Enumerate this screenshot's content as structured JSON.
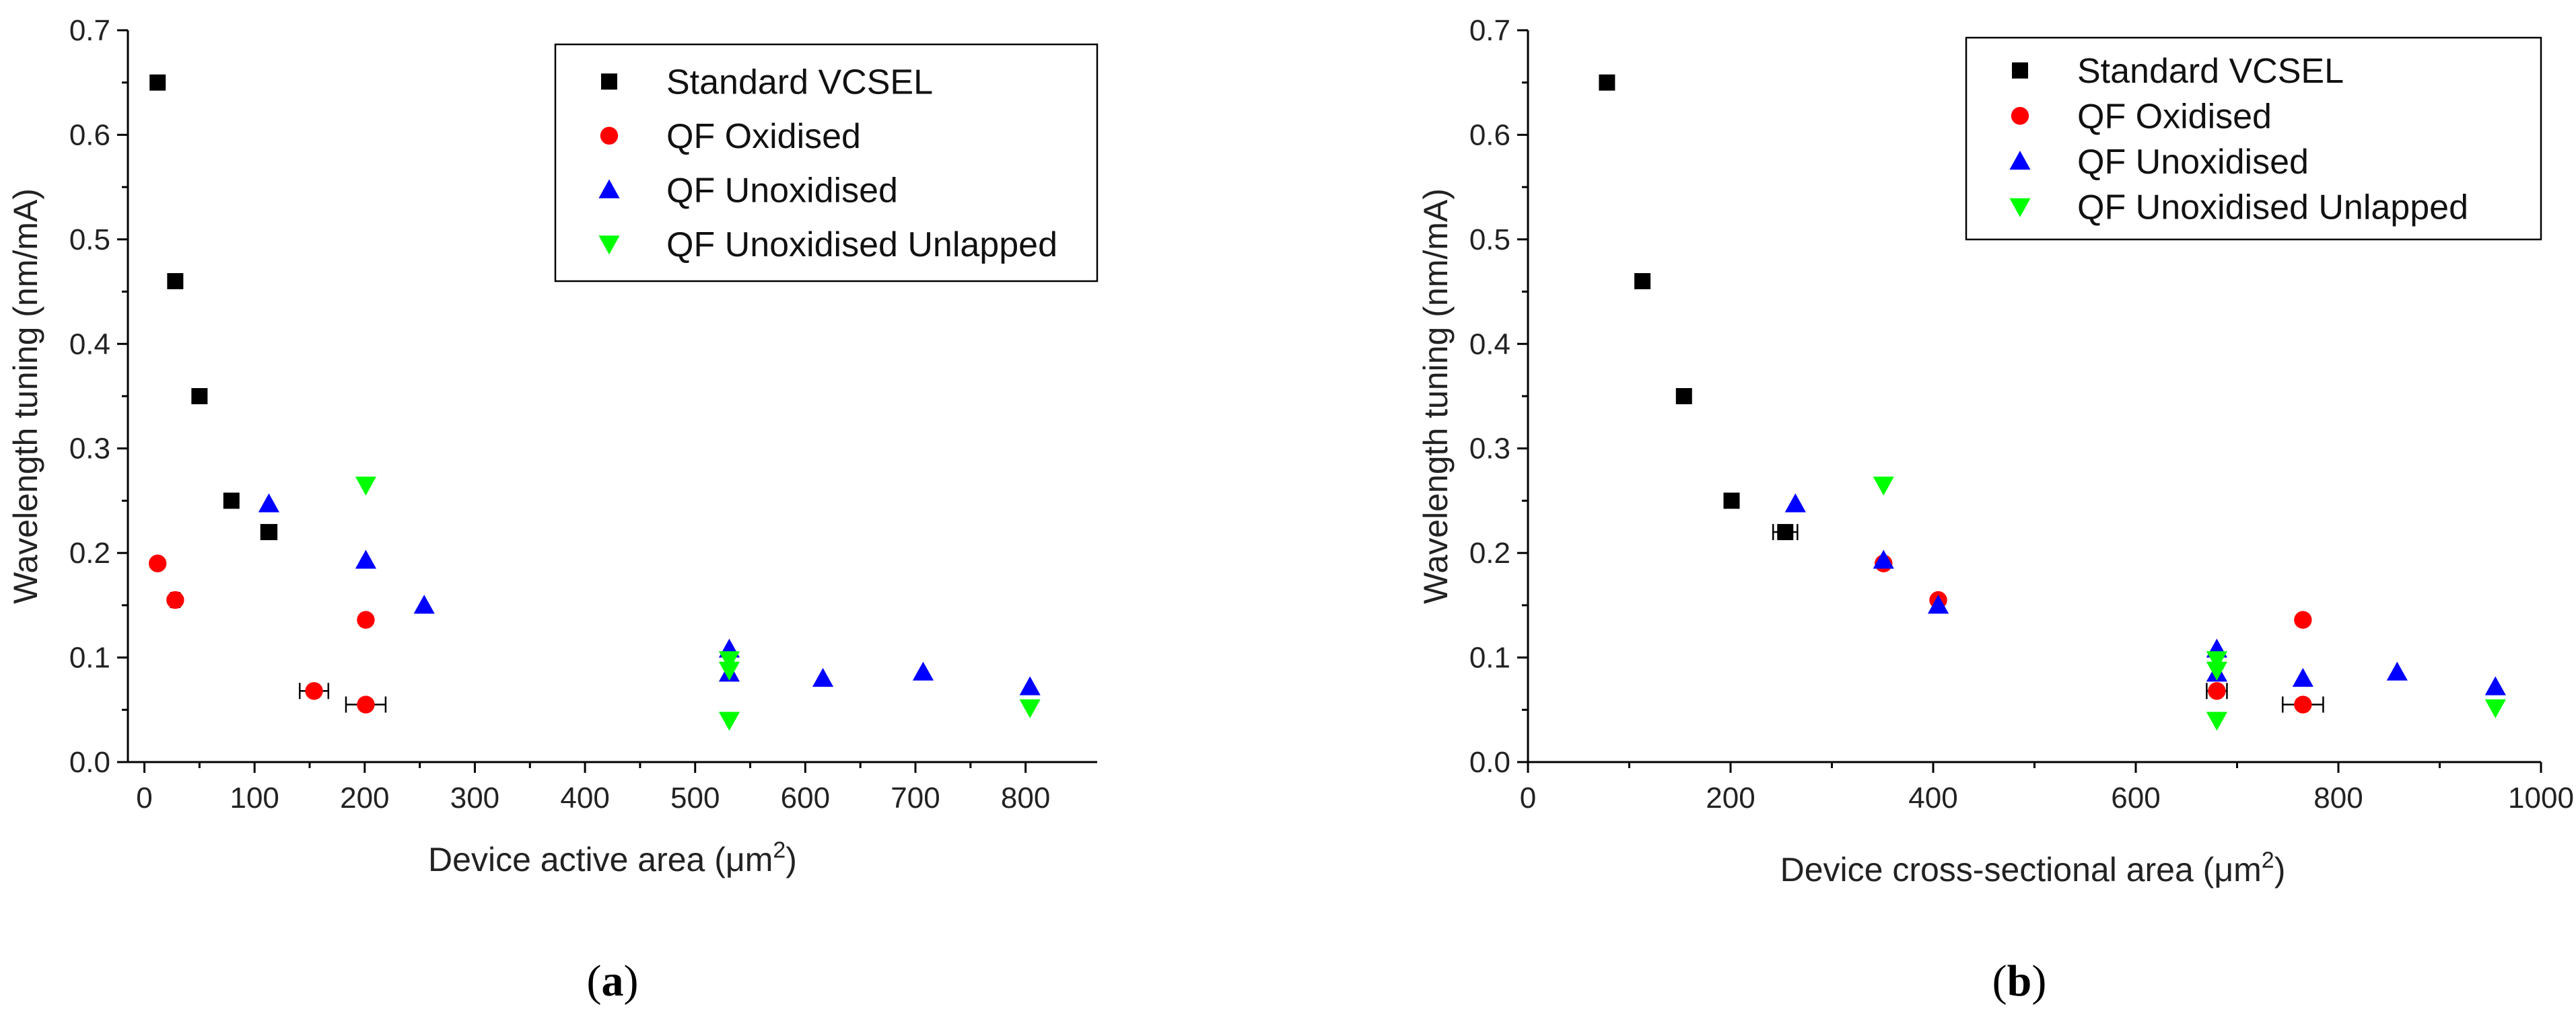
{
  "chart_data": [
    {
      "type": "scatter",
      "panel_label": "a",
      "xlabel_text": "Device active area (",
      "xlabel_unit": "μm",
      "xlabel_sup": "2",
      "xlabel_close": ")",
      "ylabel": "Wavelength tuning (nm/mA)",
      "xlim": [
        -15,
        865
      ],
      "ylim": [
        0,
        0.7
      ],
      "xticks": [
        0,
        100,
        200,
        300,
        400,
        500,
        600,
        700,
        800
      ],
      "yticks": [
        0.0,
        0.1,
        0.2,
        0.3,
        0.4,
        0.5,
        0.6,
        0.7
      ],
      "series": [
        {
          "name": "Standard VCSEL",
          "marker": "square",
          "color": "#000000",
          "points": [
            {
              "x": 12,
              "y": 0.65
            },
            {
              "x": 28,
              "y": 0.46
            },
            {
              "x": 50,
              "y": 0.35
            },
            {
              "x": 79,
              "y": 0.25,
              "xerr": 5
            },
            {
              "x": 113,
              "y": 0.22,
              "xerr": 7
            }
          ]
        },
        {
          "name": "QF Oxidised",
          "marker": "circle",
          "color": "#ff0000",
          "points": [
            {
              "x": 12,
              "y": 0.19,
              "xerr": 3
            },
            {
              "x": 28,
              "y": 0.155,
              "xerr": 4
            },
            {
              "x": 154,
              "y": 0.068,
              "xerr": 13
            },
            {
              "x": 201,
              "y": 0.136
            },
            {
              "x": 201,
              "y": 0.055,
              "xerr": 18
            }
          ]
        },
        {
          "name": "QF Unoxidised",
          "marker": "triangle-up",
          "color": "#0000ff",
          "points": [
            {
              "x": 113,
              "y": 0.247
            },
            {
              "x": 201,
              "y": 0.193
            },
            {
              "x": 254,
              "y": 0.15
            },
            {
              "x": 531,
              "y": 0.108
            },
            {
              "x": 531,
              "y": 0.085
            },
            {
              "x": 616,
              "y": 0.08
            },
            {
              "x": 707,
              "y": 0.086
            },
            {
              "x": 804,
              "y": 0.072
            }
          ]
        },
        {
          "name": "QF Unoxidised Unlapped",
          "marker": "triangle-down",
          "color": "#00ff00",
          "points": [
            {
              "x": 201,
              "y": 0.265
            },
            {
              "x": 531,
              "y": 0.098
            },
            {
              "x": 531,
              "y": 0.088
            },
            {
              "x": 531,
              "y": 0.04
            },
            {
              "x": 804,
              "y": 0.052
            }
          ]
        }
      ],
      "legend": "top-right"
    },
    {
      "type": "scatter",
      "panel_label": "b",
      "xlabel_text": "Device cross-sectional area (",
      "xlabel_unit": "μm",
      "xlabel_sup": "2",
      "xlabel_close": ")",
      "ylabel": "Wavelength tuning (nm/mA)",
      "xlim": [
        0,
        1000
      ],
      "ylim": [
        0,
        0.7
      ],
      "xticks": [
        0,
        200,
        400,
        600,
        800,
        1000
      ],
      "yticks": [
        0.0,
        0.1,
        0.2,
        0.3,
        0.4,
        0.5,
        0.6,
        0.7
      ],
      "series": [
        {
          "name": "Standard VCSEL",
          "marker": "square",
          "color": "#000000",
          "points": [
            {
              "x": 78,
              "y": 0.65
            },
            {
              "x": 113,
              "y": 0.46
            },
            {
              "x": 154,
              "y": 0.35
            },
            {
              "x": 201,
              "y": 0.25,
              "xerr": 6
            },
            {
              "x": 254,
              "y": 0.22,
              "xerr": 12
            }
          ]
        },
        {
          "name": "QF Oxidised",
          "marker": "circle",
          "color": "#ff0000",
          "points": [
            {
              "x": 351,
              "y": 0.19
            },
            {
              "x": 405,
              "y": 0.155
            },
            {
              "x": 680,
              "y": 0.068,
              "xerr": 10
            },
            {
              "x": 765,
              "y": 0.136
            },
            {
              "x": 765,
              "y": 0.055,
              "xerr": 20
            }
          ]
        },
        {
          "name": "QF Unoxidised",
          "marker": "triangle-up",
          "color": "#0000ff",
          "points": [
            {
              "x": 264,
              "y": 0.247
            },
            {
              "x": 351,
              "y": 0.193
            },
            {
              "x": 405,
              "y": 0.15
            },
            {
              "x": 680,
              "y": 0.108
            },
            {
              "x": 680,
              "y": 0.085
            },
            {
              "x": 765,
              "y": 0.08
            },
            {
              "x": 858,
              "y": 0.086
            },
            {
              "x": 955,
              "y": 0.072
            }
          ]
        },
        {
          "name": "QF Unoxidised Unlapped",
          "marker": "triangle-down",
          "color": "#00ff00",
          "points": [
            {
              "x": 351,
              "y": 0.265
            },
            {
              "x": 680,
              "y": 0.098
            },
            {
              "x": 680,
              "y": 0.088
            },
            {
              "x": 680,
              "y": 0.04
            },
            {
              "x": 955,
              "y": 0.052
            }
          ]
        }
      ],
      "legend": "top-right"
    }
  ]
}
